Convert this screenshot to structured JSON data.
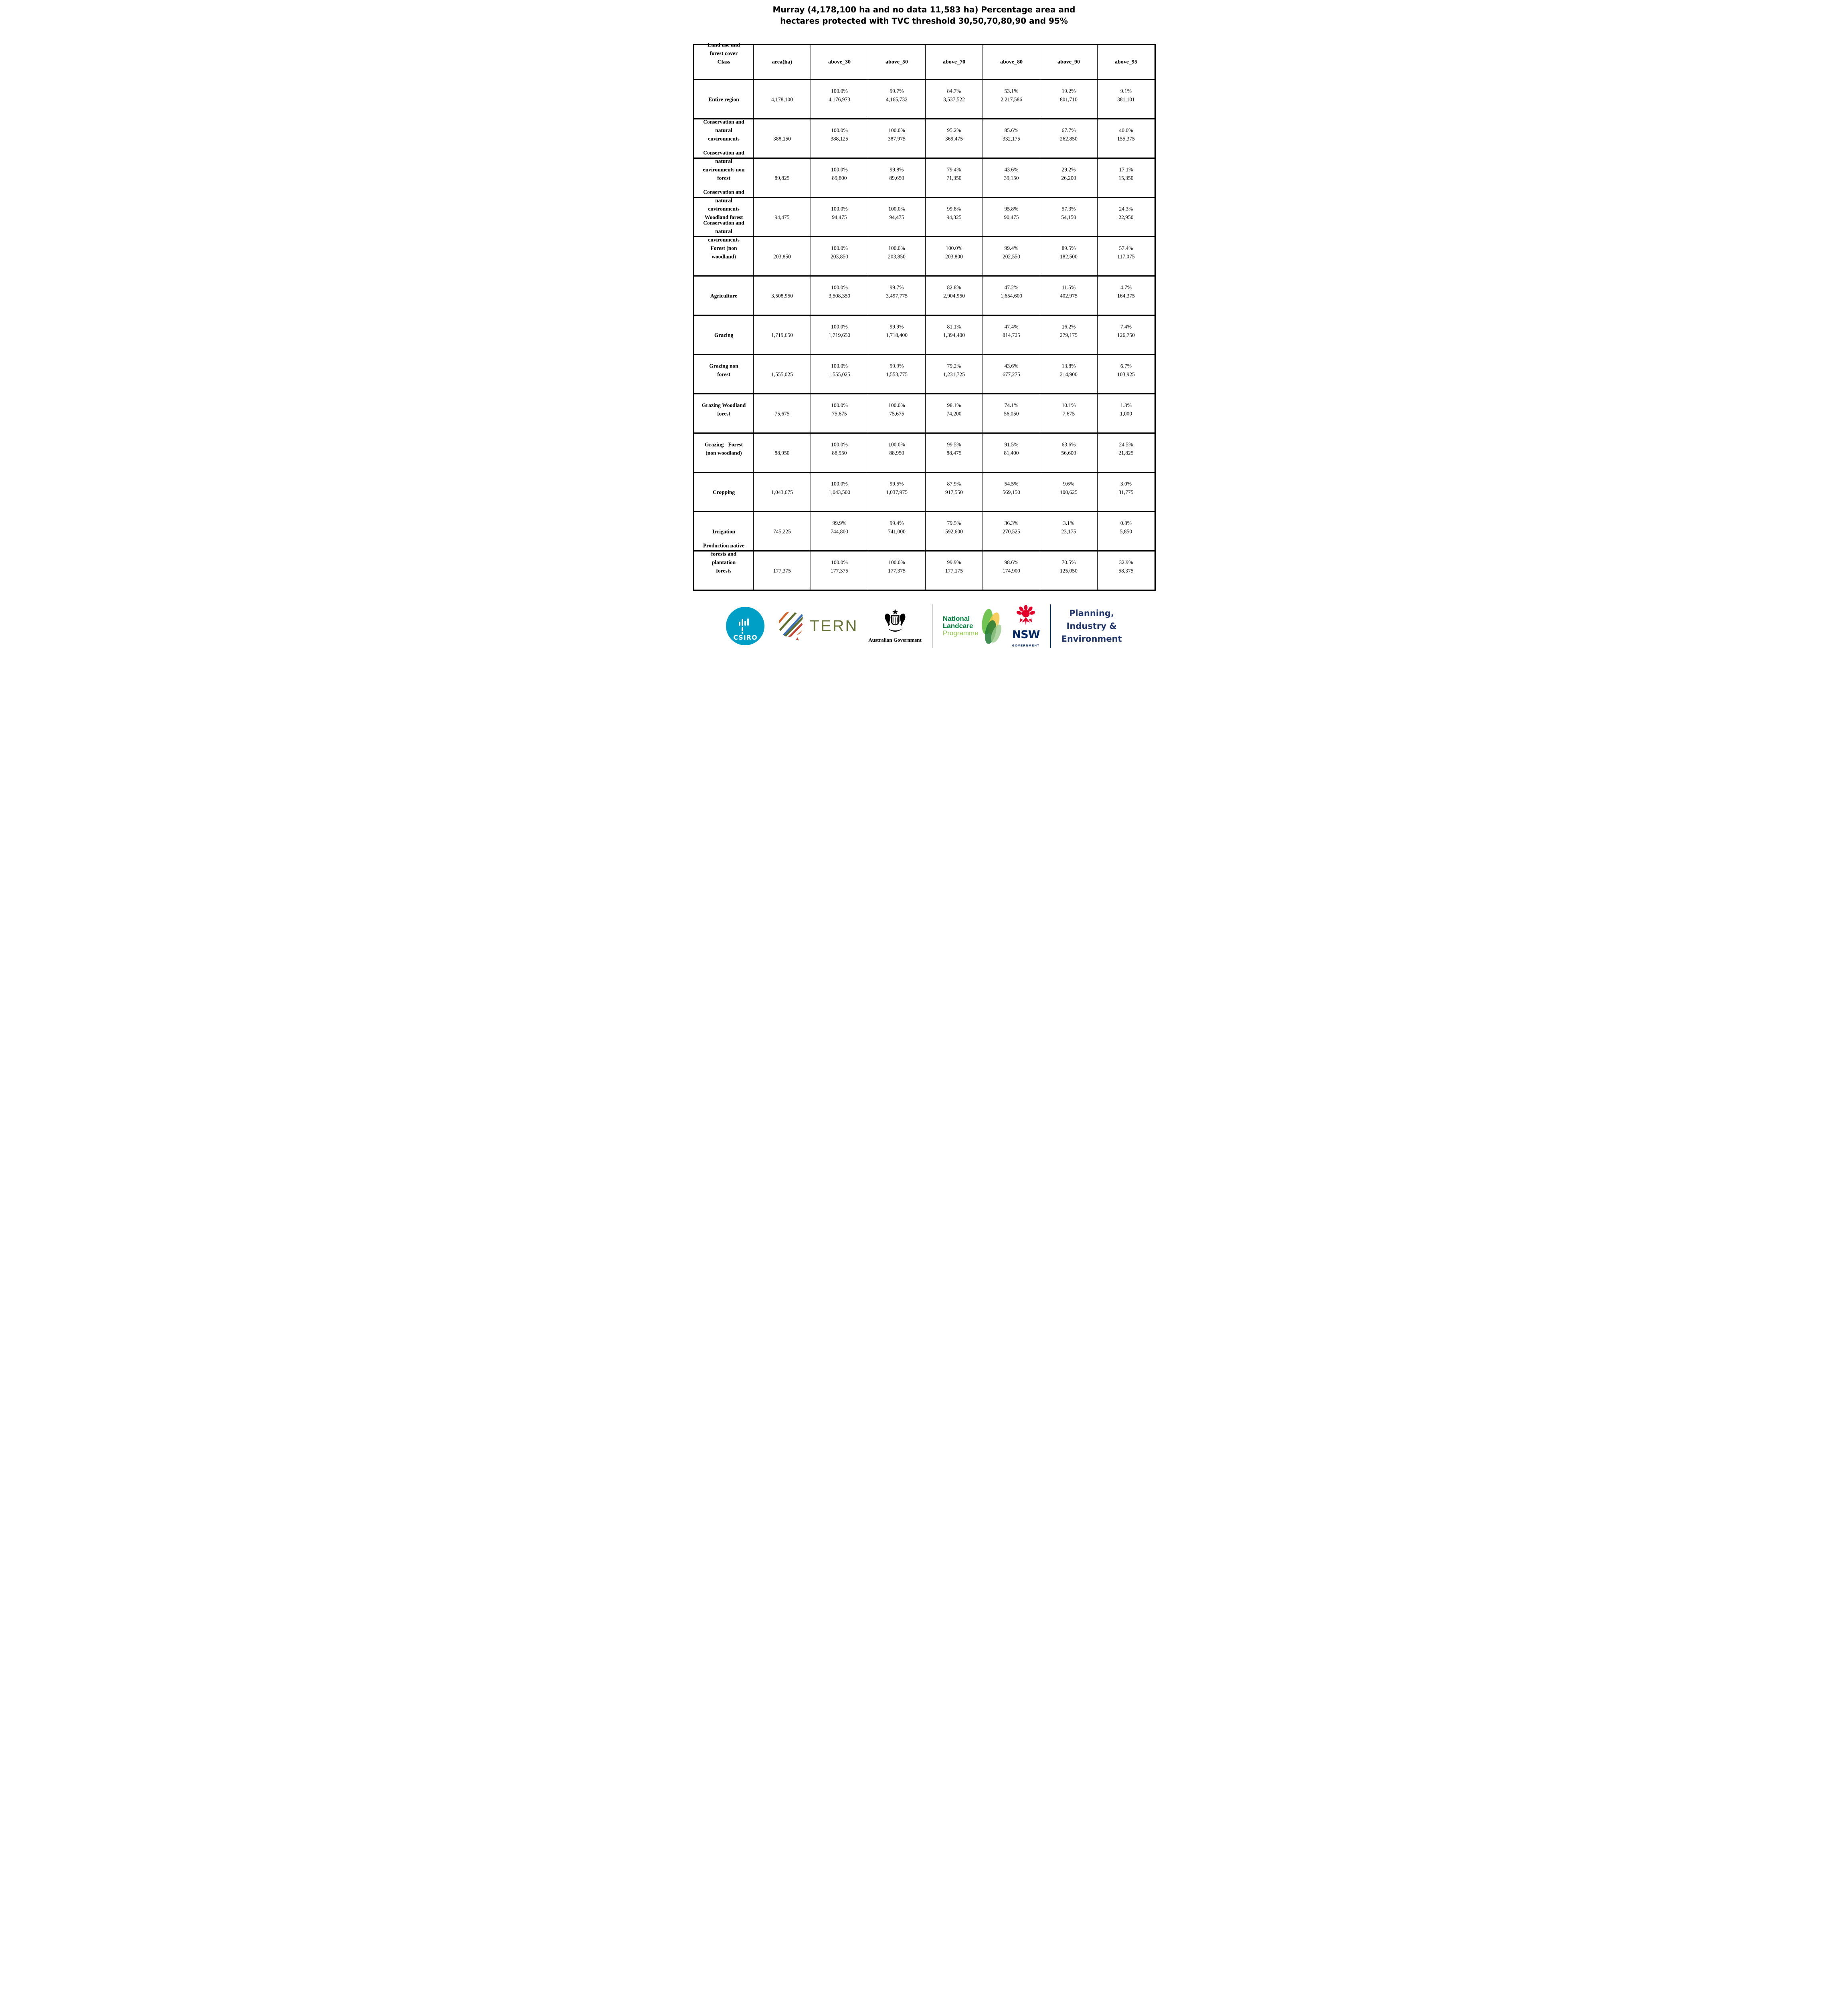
{
  "chart_data": {
    "type": "table",
    "title": "Murray (4,178,100 ha and no data 11,583 ha) Percentage area and\nhectares protected with TVC threshold 30,50,70,80,90 and 95%",
    "columns": [
      "Land use and\nforest cover\nClass",
      "area(ha)",
      "above_30",
      "above_50",
      "above_70",
      "above_80",
      "above_90",
      "above_95"
    ],
    "rows": [
      {
        "label": "Entire region",
        "area": "4,178,100",
        "cells": [
          [
            "100.0%",
            "4,176,973"
          ],
          [
            "99.7%",
            "4,165,732"
          ],
          [
            "84.7%",
            "3,537,522"
          ],
          [
            "53.1%",
            "2,217,586"
          ],
          [
            "19.2%",
            "801,710"
          ],
          [
            "9.1%",
            "381,101"
          ]
        ]
      },
      {
        "label": "Conservation and\nnatural\nenvironments",
        "area": "388,150",
        "cells": [
          [
            "100.0%",
            "388,125"
          ],
          [
            "100.0%",
            "387,975"
          ],
          [
            "95.2%",
            "369,475"
          ],
          [
            "85.6%",
            "332,175"
          ],
          [
            "67.7%",
            "262,850"
          ],
          [
            "40.0%",
            "155,375"
          ]
        ]
      },
      {
        "label": "Conservation and\nnatural\nenvironments non\nforest",
        "area": "89,825",
        "cells": [
          [
            "100.0%",
            "89,800"
          ],
          [
            "99.8%",
            "89,650"
          ],
          [
            "79.4%",
            "71,350"
          ],
          [
            "43.6%",
            "39,150"
          ],
          [
            "29.2%",
            "26,200"
          ],
          [
            "17.1%",
            "15,350"
          ]
        ]
      },
      {
        "label": "Conservation and\nnatural\nenvironments\nWoodland forest",
        "area": "94,475",
        "cells": [
          [
            "100.0%",
            "94,475"
          ],
          [
            "100.0%",
            "94,475"
          ],
          [
            "99.8%",
            "94,325"
          ],
          [
            "95.8%",
            "90,475"
          ],
          [
            "57.3%",
            "54,150"
          ],
          [
            "24.3%",
            "22,950"
          ]
        ]
      },
      {
        "label": "Conservation and\nnatural\nenvironments\nForest (non\nwoodland)",
        "area": "203,850",
        "cells": [
          [
            "100.0%",
            "203,850"
          ],
          [
            "100.0%",
            "203,850"
          ],
          [
            "100.0%",
            "203,800"
          ],
          [
            "99.4%",
            "202,550"
          ],
          [
            "89.5%",
            "182,500"
          ],
          [
            "57.4%",
            "117,075"
          ]
        ]
      },
      {
        "label": "Agriculture",
        "area": "3,508,950",
        "cells": [
          [
            "100.0%",
            "3,508,350"
          ],
          [
            "99.7%",
            "3,497,775"
          ],
          [
            "82.8%",
            "2,904,950"
          ],
          [
            "47.2%",
            "1,654,600"
          ],
          [
            "11.5%",
            "402,975"
          ],
          [
            "4.7%",
            "164,375"
          ]
        ]
      },
      {
        "label": "Grazing",
        "area": "1,719,650",
        "cells": [
          [
            "100.0%",
            "1,719,650"
          ],
          [
            "99.9%",
            "1,718,400"
          ],
          [
            "81.1%",
            "1,394,400"
          ],
          [
            "47.4%",
            "814,725"
          ],
          [
            "16.2%",
            "279,175"
          ],
          [
            "7.4%",
            "126,750"
          ]
        ]
      },
      {
        "label": "Grazing non\nforest",
        "area": "1,555,025",
        "cells": [
          [
            "100.0%",
            "1,555,025"
          ],
          [
            "99.9%",
            "1,553,775"
          ],
          [
            "79.2%",
            "1,231,725"
          ],
          [
            "43.6%",
            "677,275"
          ],
          [
            "13.8%",
            "214,900"
          ],
          [
            "6.7%",
            "103,925"
          ]
        ]
      },
      {
        "label": "Grazing Woodland\nforest",
        "area": "75,675",
        "cells": [
          [
            "100.0%",
            "75,675"
          ],
          [
            "100.0%",
            "75,675"
          ],
          [
            "98.1%",
            "74,200"
          ],
          [
            "74.1%",
            "56,050"
          ],
          [
            "10.1%",
            "7,675"
          ],
          [
            "1.3%",
            "1,000"
          ]
        ]
      },
      {
        "label": "Grazing - Forest\n(non woodland)",
        "area": "88,950",
        "cells": [
          [
            "100.0%",
            "88,950"
          ],
          [
            "100.0%",
            "88,950"
          ],
          [
            "99.5%",
            "88,475"
          ],
          [
            "91.5%",
            "81,400"
          ],
          [
            "63.6%",
            "56,600"
          ],
          [
            "24.5%",
            "21,825"
          ]
        ]
      },
      {
        "label": "Cropping",
        "area": "1,043,675",
        "cells": [
          [
            "100.0%",
            "1,043,500"
          ],
          [
            "99.5%",
            "1,037,975"
          ],
          [
            "87.9%",
            "917,550"
          ],
          [
            "54.5%",
            "569,150"
          ],
          [
            "9.6%",
            "100,625"
          ],
          [
            "3.0%",
            "31,775"
          ]
        ]
      },
      {
        "label": "Irrigation",
        "area": "745,225",
        "cells": [
          [
            "99.9%",
            "744,800"
          ],
          [
            "99.4%",
            "741,000"
          ],
          [
            "79.5%",
            "592,600"
          ],
          [
            "36.3%",
            "270,525"
          ],
          [
            "3.1%",
            "23,175"
          ],
          [
            "0.8%",
            "5,850"
          ]
        ]
      },
      {
        "label": "Production native\nforests and\nplantation\nforests",
        "area": "177,375",
        "cells": [
          [
            "100.0%",
            "177,375"
          ],
          [
            "100.0%",
            "177,375"
          ],
          [
            "99.9%",
            "177,175"
          ],
          [
            "98.6%",
            "174,900"
          ],
          [
            "70.5%",
            "125,050"
          ],
          [
            "32.9%",
            "58,375"
          ]
        ]
      }
    ]
  },
  "footer": {
    "logos": [
      {
        "name": "csiro",
        "text": "CSIRO",
        "color": "#00A0C6"
      },
      {
        "name": "tern",
        "text": "TERN",
        "color": "#68743B"
      },
      {
        "name": "australian-government",
        "text": "Australian Government",
        "color": "#000000"
      },
      {
        "name": "national-landcare-programme",
        "lines": [
          "National",
          "Landcare",
          "Programme"
        ],
        "color": "#00843D",
        "accent": "#8CC63E"
      },
      {
        "name": "nsw-government",
        "text": "NSW",
        "subtext": "GOVERNMENT",
        "color": "#002664",
        "accent": "#E4002B"
      },
      {
        "name": "planning-industry-environment",
        "lines": [
          "Planning,",
          "Industry &",
          "Environment"
        ],
        "color": "#1F356B"
      }
    ]
  }
}
